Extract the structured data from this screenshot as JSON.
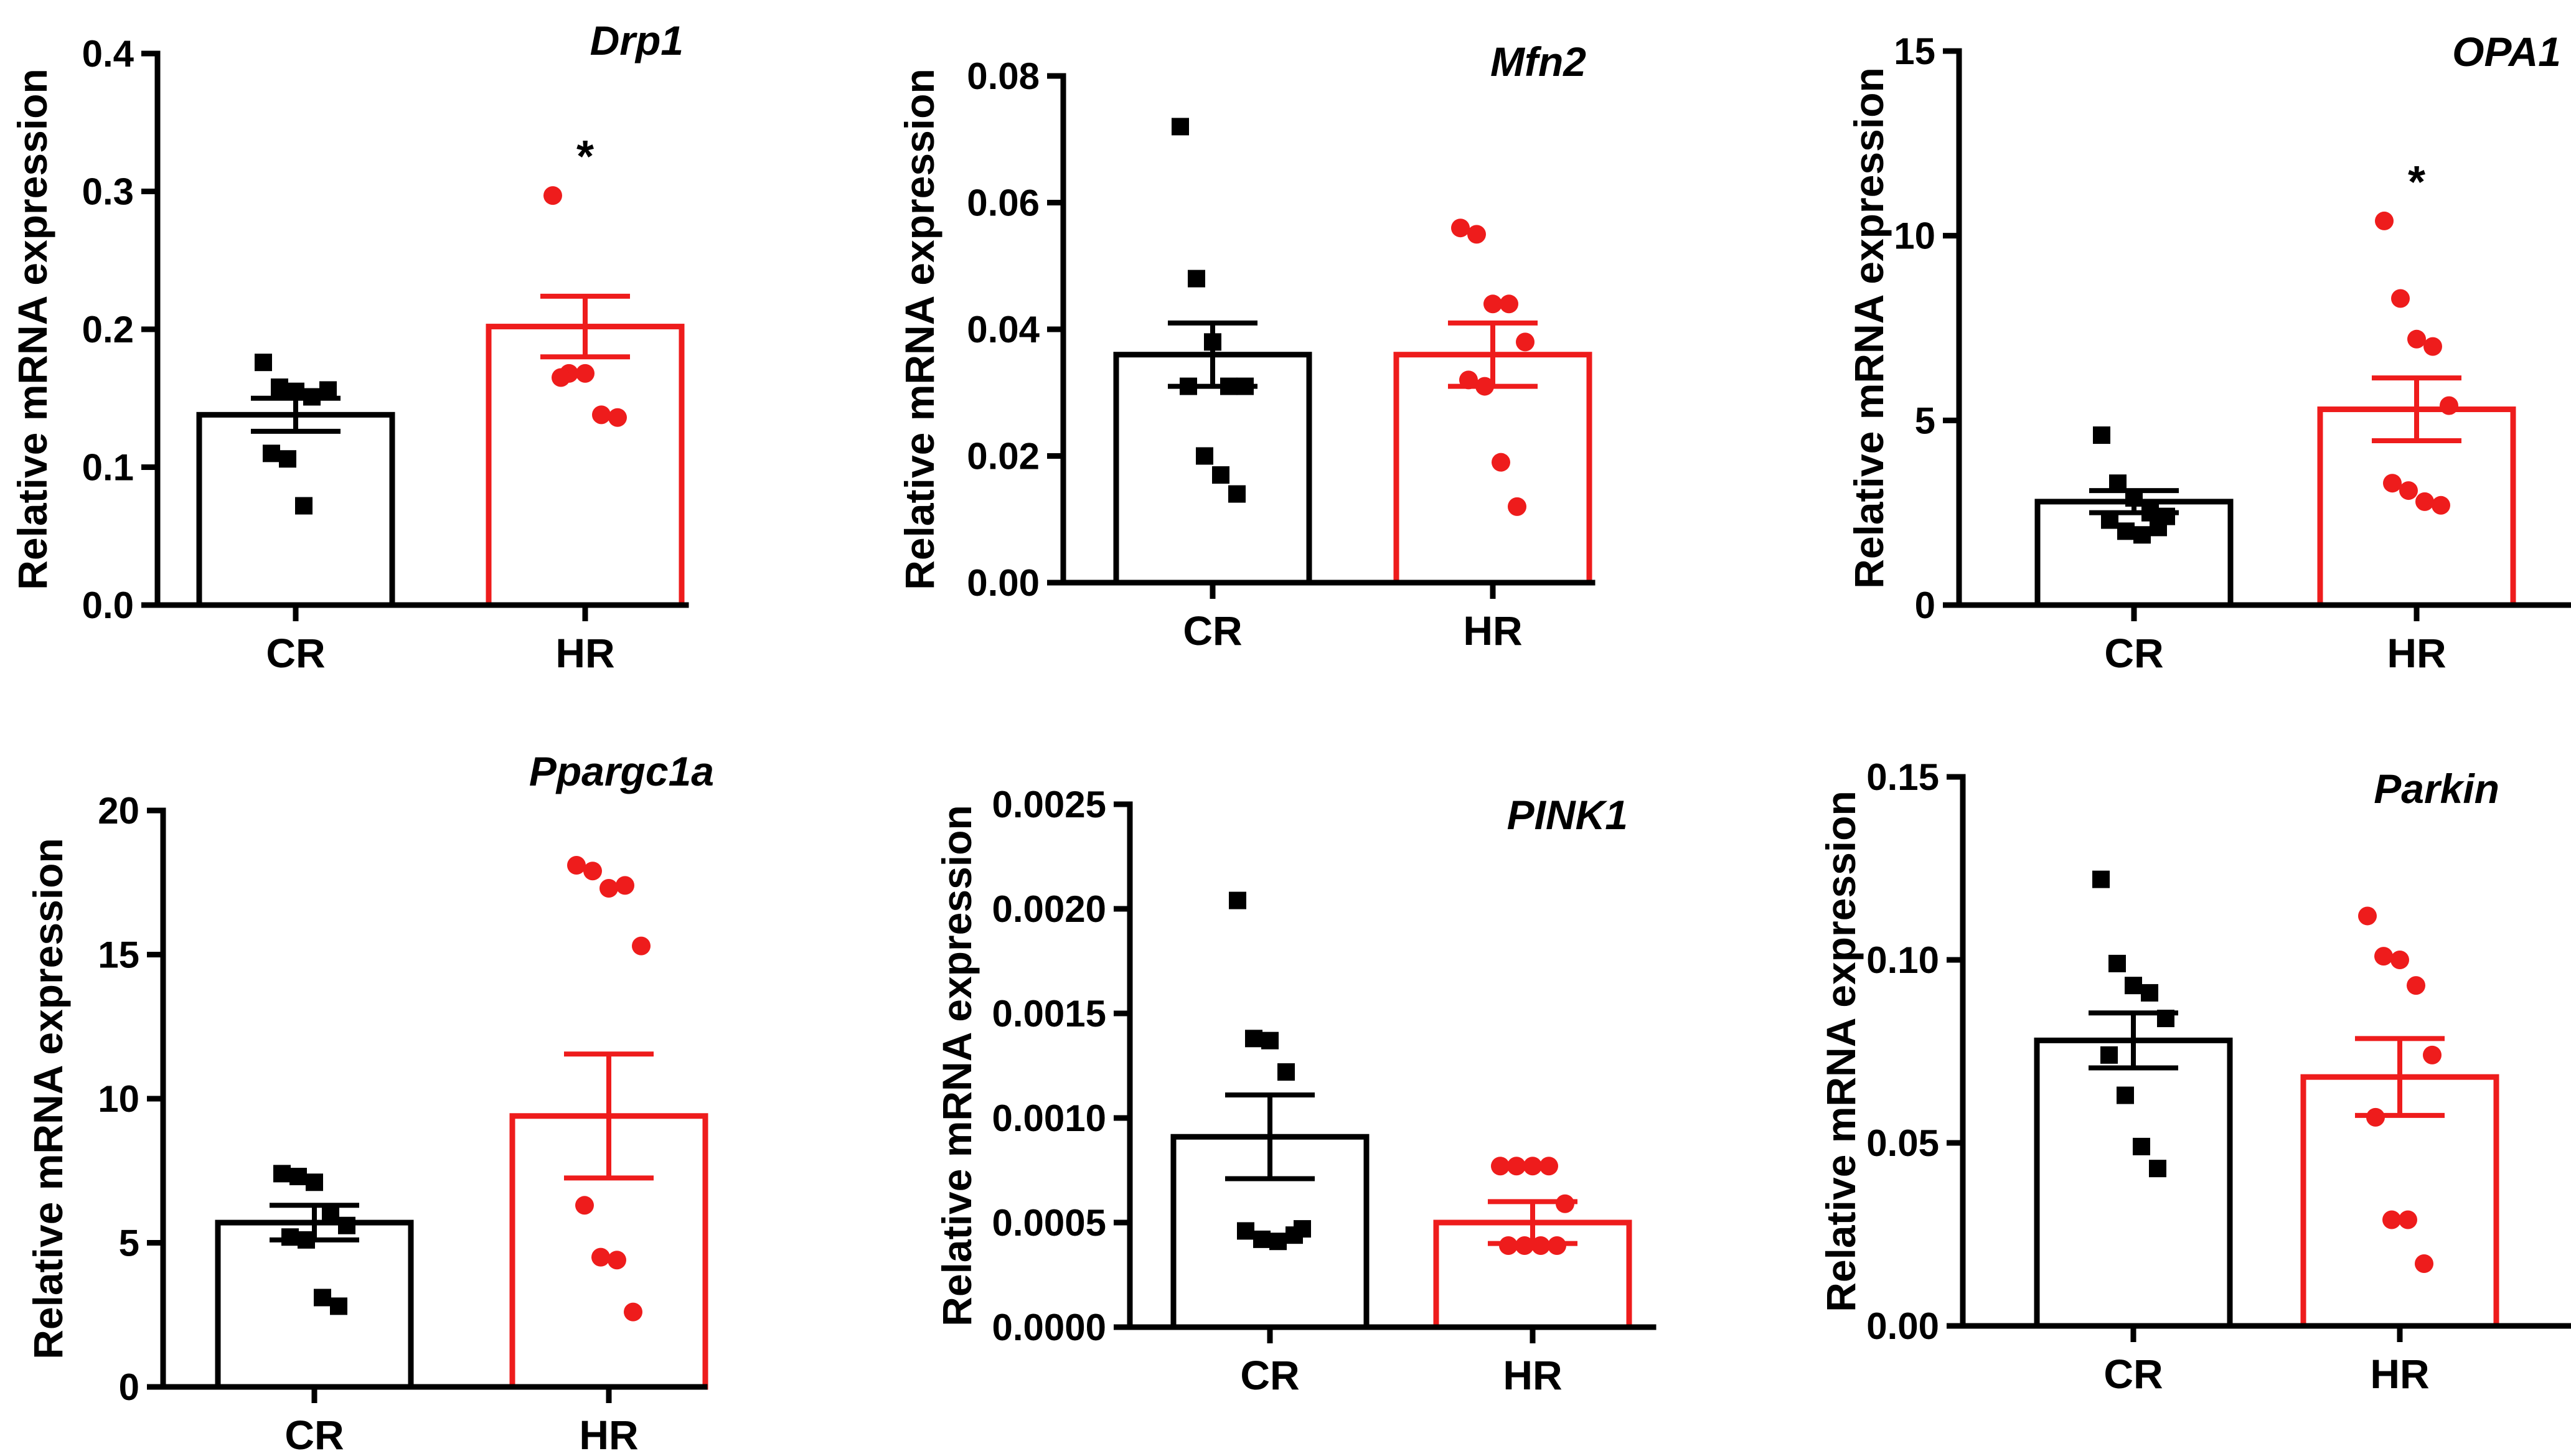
{
  "chart_data": [
    {
      "type": "bar",
      "title": "Drp1",
      "ylabel": "Relative mRNA expression",
      "xlabel": "",
      "categories": [
        "CR",
        "HR"
      ],
      "ylim": [
        0,
        0.4
      ],
      "yticks": [
        0.0,
        0.1,
        0.2,
        0.3,
        0.4
      ],
      "ytick_labels": [
        "0.0",
        "0.1",
        "0.2",
        "0.3",
        "0.4"
      ],
      "means": [
        0.138,
        0.202
      ],
      "sem": [
        0.012,
        0.022
      ],
      "points": [
        [
          0.176,
          0.158,
          0.155,
          0.151,
          0.156,
          0.11,
          0.106,
          0.072
        ],
        [
          0.297,
          0.168,
          0.168,
          0.138,
          0.136,
          0.165
        ]
      ],
      "colors": [
        "#000000",
        "#ee1c1c"
      ],
      "markers": [
        "square",
        "circle"
      ],
      "significance": [
        "",
        "*"
      ]
    },
    {
      "type": "bar",
      "title": "Mfn2",
      "ylabel": "Relative mRNA expression",
      "xlabel": "",
      "categories": [
        "CR",
        "HR"
      ],
      "ylim": [
        0,
        0.08
      ],
      "yticks": [
        0.0,
        0.02,
        0.04,
        0.06,
        0.08
      ],
      "ytick_labels": [
        "0.00",
        "0.02",
        "0.04",
        "0.06",
        "0.08"
      ],
      "means": [
        0.036,
        0.036
      ],
      "sem": [
        0.005,
        0.005
      ],
      "points": [
        [
          0.072,
          0.048,
          0.038,
          0.031,
          0.031,
          0.031,
          0.02,
          0.017,
          0.014
        ],
        [
          0.056,
          0.055,
          0.044,
          0.044,
          0.038,
          0.032,
          0.031,
          0.019,
          0.012
        ]
      ],
      "colors": [
        "#000000",
        "#ee1c1c"
      ],
      "markers": [
        "square",
        "circle"
      ],
      "significance": [
        "",
        ""
      ]
    },
    {
      "type": "bar",
      "title": "OPA1",
      "ylabel": "Relative mRNA expression",
      "xlabel": "",
      "categories": [
        "CR",
        "HR"
      ],
      "ylim": [
        0,
        15
      ],
      "yticks": [
        0,
        5,
        10,
        15
      ],
      "ytick_labels": [
        "0",
        "5",
        "10",
        "15"
      ],
      "means": [
        2.8,
        5.3
      ],
      "sem": [
        0.3,
        0.85
      ],
      "points": [
        [
          4.6,
          3.3,
          2.9,
          2.5,
          2.4,
          2.3,
          2.0,
          1.9,
          2.1
        ],
        [
          10.4,
          8.3,
          7.2,
          7.0,
          5.4,
          3.3,
          3.1,
          2.8,
          2.7
        ]
      ],
      "colors": [
        "#000000",
        "#ee1c1c"
      ],
      "markers": [
        "square",
        "circle"
      ],
      "significance": [
        "",
        "*"
      ]
    },
    {
      "type": "bar",
      "title": "Ppargc1a",
      "ylabel": "Relative mRNA expression",
      "xlabel": "",
      "categories": [
        "CR",
        "HR"
      ],
      "ylim": [
        0,
        20
      ],
      "yticks": [
        0,
        5,
        10,
        15,
        20
      ],
      "ytick_labels": [
        "0",
        "5",
        "10",
        "15",
        "20"
      ],
      "means": [
        5.7,
        9.4
      ],
      "sem": [
        0.6,
        2.15
      ],
      "points": [
        [
          7.4,
          7.3,
          7.1,
          6.0,
          5.6,
          5.2,
          5.1,
          3.1,
          2.8
        ],
        [
          18.1,
          17.9,
          17.3,
          17.4,
          15.3,
          6.3,
          4.5,
          4.4,
          2.6
        ]
      ],
      "colors": [
        "#000000",
        "#ee1c1c"
      ],
      "markers": [
        "square",
        "circle"
      ],
      "significance": [
        "",
        ""
      ]
    },
    {
      "type": "bar",
      "title": "PINK1",
      "ylabel": "Relative mRNA expression",
      "xlabel": "",
      "categories": [
        "CR",
        "HR"
      ],
      "ylim": [
        0,
        0.0025
      ],
      "yticks": [
        0,
        0.0005,
        0.001,
        0.0015,
        0.002,
        0.0025
      ],
      "ytick_labels": [
        "0.0000",
        "0.0005",
        "0.0010",
        "0.0015",
        "0.0020",
        "0.0025"
      ],
      "means": [
        0.00091,
        0.0005
      ],
      "sem": [
        0.0002,
        0.0001
      ],
      "points": [
        [
          0.00204,
          0.00138,
          0.00137,
          0.00122,
          0.00047,
          0.00046,
          0.00042,
          0.00041,
          0.00044
        ],
        [
          0.00077,
          0.00077,
          0.00077,
          0.00077,
          0.00059,
          0.00039,
          0.00039,
          0.00039,
          0.00039
        ]
      ],
      "colors": [
        "#000000",
        "#ee1c1c"
      ],
      "markers": [
        "square",
        "circle"
      ],
      "significance": [
        "",
        ""
      ]
    },
    {
      "type": "bar",
      "title": "Parkin",
      "ylabel": "Relative mRNA expression",
      "xlabel": "",
      "categories": [
        "CR",
        "HR"
      ],
      "ylim": [
        0,
        0.15
      ],
      "yticks": [
        0.0,
        0.05,
        0.1,
        0.15
      ],
      "ytick_labels": [
        "0.00",
        "0.05",
        "0.10",
        "0.15"
      ],
      "means": [
        0.078,
        0.068
      ],
      "sem": [
        0.0075,
        0.0105
      ],
      "points": [
        [
          0.122,
          0.099,
          0.093,
          0.091,
          0.084,
          0.074,
          0.063,
          0.049,
          0.043
        ],
        [
          0.112,
          0.101,
          0.1,
          0.093,
          0.074,
          0.057,
          0.029,
          0.029,
          0.017
        ]
      ],
      "colors": [
        "#000000",
        "#ee1c1c"
      ],
      "markers": [
        "square",
        "circle"
      ],
      "significance": [
        "",
        ""
      ]
    }
  ]
}
